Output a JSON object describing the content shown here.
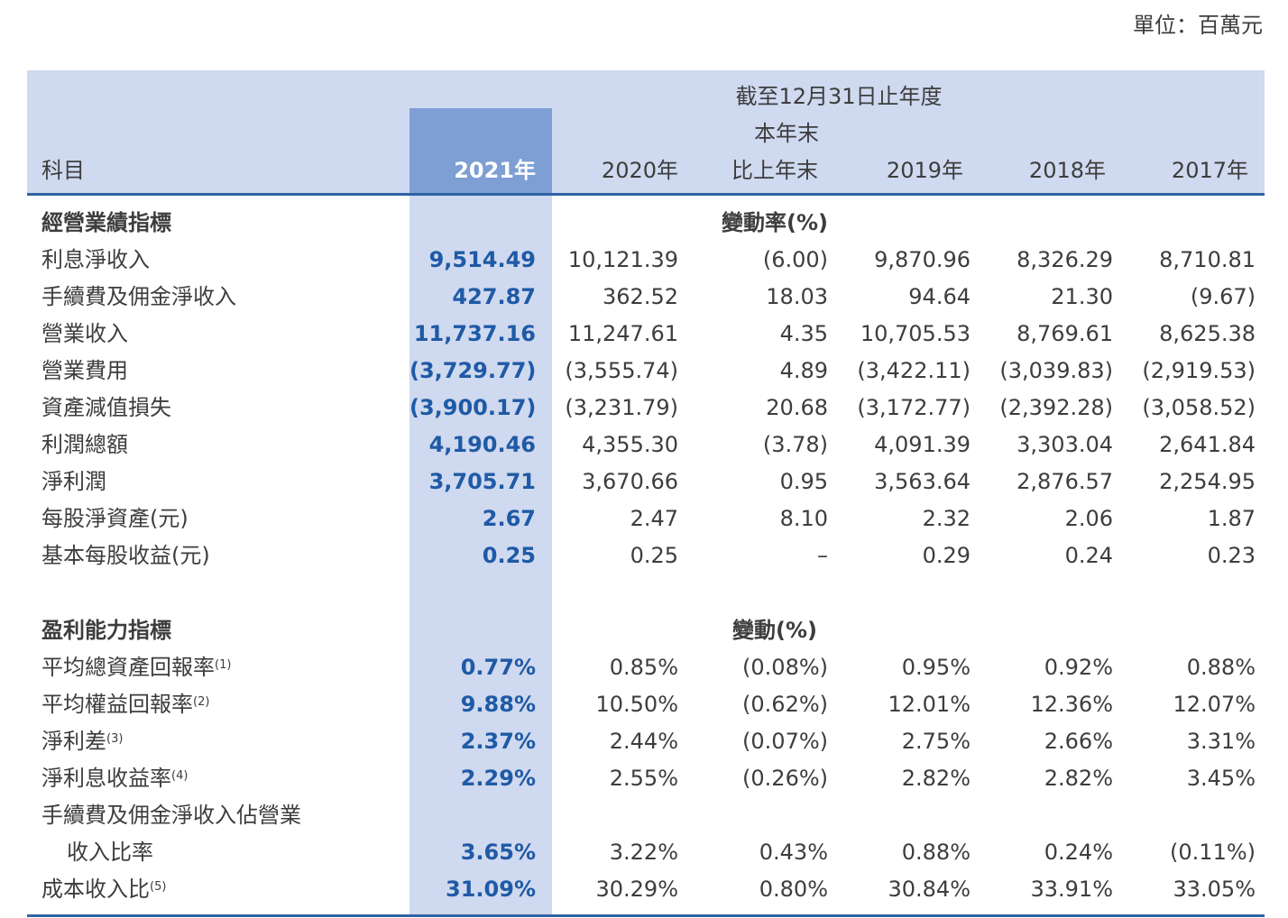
{
  "unit_label": "單位：百萬元",
  "header": {
    "period_label": "截至12月31日止年度",
    "change_label_line1": "本年末",
    "change_label_line2": "比上年末",
    "item_label": "科目",
    "year_2021": "2021年",
    "year_2020": "2020年",
    "year_2019": "2019年",
    "year_2018": "2018年",
    "year_2017": "2017年"
  },
  "section1": {
    "title": "經營業績指標",
    "change_label": "變動率(%)",
    "rows": [
      {
        "item": "利息淨收入",
        "y2021": "9,514.49",
        "y2020": "10,121.39",
        "chg": "(6.00)",
        "y2019": "9,870.96",
        "y2018": "8,326.29",
        "y2017": "8,710.81"
      },
      {
        "item": "手續費及佣金淨收入",
        "y2021": "427.87",
        "y2020": "362.52",
        "chg": "18.03",
        "y2019": "94.64",
        "y2018": "21.30",
        "y2017": "(9.67)"
      },
      {
        "item": "營業收入",
        "y2021": "11,737.16",
        "y2020": "11,247.61",
        "chg": "4.35",
        "y2019": "10,705.53",
        "y2018": "8,769.61",
        "y2017": "8,625.38"
      },
      {
        "item": "營業費用",
        "y2021": "(3,729.77)",
        "y2020": "(3,555.74)",
        "chg": "4.89",
        "y2019": "(3,422.11)",
        "y2018": "(3,039.83)",
        "y2017": "(2,919.53)"
      },
      {
        "item": "資產減值損失",
        "y2021": "(3,900.17)",
        "y2020": "(3,231.79)",
        "chg": "20.68",
        "y2019": "(3,172.77)",
        "y2018": "(2,392.28)",
        "y2017": "(3,058.52)"
      },
      {
        "item": "利潤總額",
        "y2021": "4,190.46",
        "y2020": "4,355.30",
        "chg": "(3.78)",
        "y2019": "4,091.39",
        "y2018": "3,303.04",
        "y2017": "2,641.84"
      },
      {
        "item": "淨利潤",
        "y2021": "3,705.71",
        "y2020": "3,670.66",
        "chg": "0.95",
        "y2019": "3,563.64",
        "y2018": "2,876.57",
        "y2017": "2,254.95"
      },
      {
        "item": "每股淨資產(元)",
        "y2021": "2.67",
        "y2020": "2.47",
        "chg": "8.10",
        "y2019": "2.32",
        "y2018": "2.06",
        "y2017": "1.87"
      },
      {
        "item": "基本每股收益(元)",
        "y2021": "0.25",
        "y2020": "0.25",
        "chg": "–",
        "y2019": "0.29",
        "y2018": "0.24",
        "y2017": "0.23"
      }
    ]
  },
  "section2": {
    "title": "盈利能力指標",
    "change_label": "變動(%)",
    "rows": [
      {
        "item": "平均總資產回報率",
        "note": "(1)",
        "y2021": "0.77%",
        "y2020": "0.85%",
        "chg": "(0.08%)",
        "y2019": "0.95%",
        "y2018": "0.92%",
        "y2017": "0.88%"
      },
      {
        "item": "平均權益回報率",
        "note": "(2)",
        "y2021": "9.88%",
        "y2020": "10.50%",
        "chg": "(0.62%)",
        "y2019": "12.01%",
        "y2018": "12.36%",
        "y2017": "12.07%"
      },
      {
        "item": "淨利差",
        "note": "(3)",
        "y2021": "2.37%",
        "y2020": "2.44%",
        "chg": "(0.07%)",
        "y2019": "2.75%",
        "y2018": "2.66%",
        "y2017": "3.31%"
      },
      {
        "item": "淨利息收益率",
        "note": "(4)",
        "y2021": "2.29%",
        "y2020": "2.55%",
        "chg": "(0.26%)",
        "y2019": "2.82%",
        "y2018": "2.82%",
        "y2017": "3.45%"
      },
      {
        "item": "手續費及佣金淨收入佔營業",
        "item_line2": "收入比率",
        "note": "",
        "y2021": "3.65%",
        "y2020": "3.22%",
        "chg": "0.43%",
        "y2019": "0.88%",
        "y2018": "0.24%",
        "y2017": "(0.11%)"
      },
      {
        "item": "成本收入比",
        "note": "(5)",
        "y2021": "31.09%",
        "y2020": "30.29%",
        "chg": "0.80%",
        "y2019": "30.84%",
        "y2018": "33.91%",
        "y2017": "33.05%"
      }
    ]
  }
}
